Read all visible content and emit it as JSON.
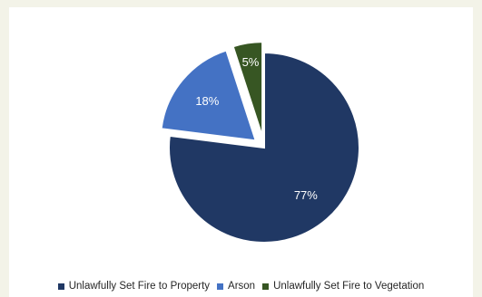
{
  "chart_data": {
    "type": "pie",
    "title": "",
    "slices": [
      {
        "label": "Unlawfully Set Fire to Property",
        "value": 77,
        "display": "77%",
        "color": "#203864",
        "exploded": false
      },
      {
        "label": "Arson",
        "value": 18,
        "display": "18%",
        "color": "#4472c4",
        "exploded": true
      },
      {
        "label": "Unlawfully Set Fire to Vegetation",
        "value": 5,
        "display": "5%",
        "color": "#375623",
        "exploded": true
      }
    ],
    "legend": {
      "position": "bottom"
    }
  }
}
